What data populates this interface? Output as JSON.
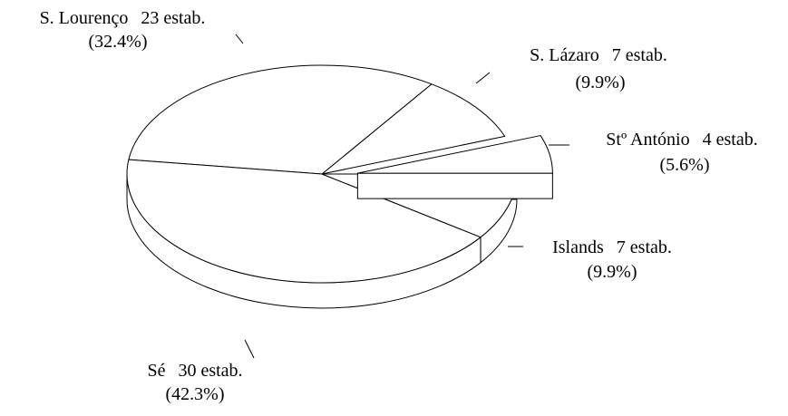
{
  "chart_data": {
    "type": "pie3d",
    "categories": [
      "Stº António",
      "S. Lázaro",
      "S. Lourenço",
      "Sé",
      "Islands"
    ],
    "values": [
      4,
      7,
      23,
      30,
      7
    ],
    "value_labels": [
      "4 estab.",
      "7 estab.",
      "23 estab.",
      "30 estab.",
      "7 estab."
    ],
    "percentages": [
      5.6,
      9.9,
      32.4,
      42.3,
      9.9
    ],
    "percentage_labels": [
      "(5.6%)",
      "(9.9%)",
      "(32.4%)",
      "(42.3%)",
      "(9.9%)"
    ],
    "explode": [
      true,
      false,
      false,
      false,
      false
    ],
    "color": "#ffffff"
  }
}
